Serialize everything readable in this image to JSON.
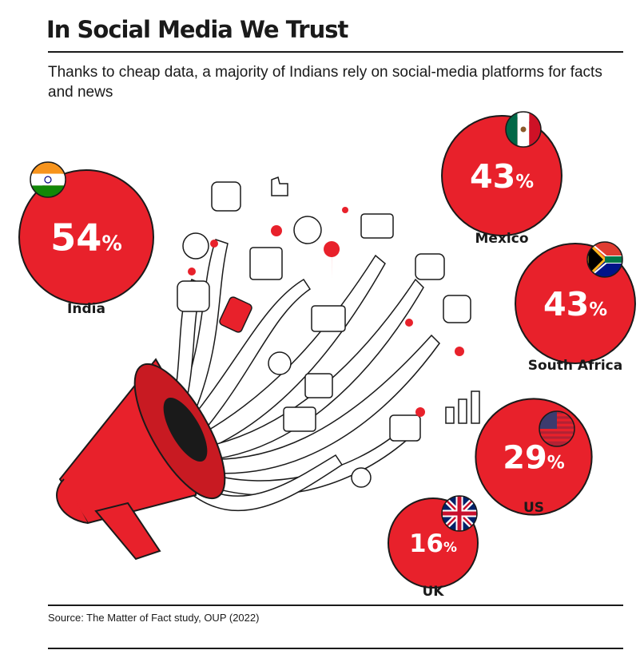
{
  "title": "In Social Media We Trust",
  "subtitle": "Thanks to cheap data, a majority of Indians rely on social-media platforms for facts and news",
  "source": "Source: The Matter of Fact study, OUP (2022)",
  "colors": {
    "bubble": "#e8212b",
    "outline": "#1a1a1a",
    "text": "#1a1a1a"
  },
  "chart_data": {
    "type": "bubble",
    "unit": "%",
    "categories": [
      "India",
      "Mexico",
      "South Africa",
      "US",
      "UK"
    ],
    "values": [
      54,
      43,
      43,
      29,
      16
    ],
    "labels": [
      "54%",
      "43%",
      "43%",
      "29%",
      "16%"
    ],
    "flags": [
      "india-flag",
      "mexico-flag",
      "south-africa-flag",
      "us-flag",
      "uk-flag"
    ]
  }
}
